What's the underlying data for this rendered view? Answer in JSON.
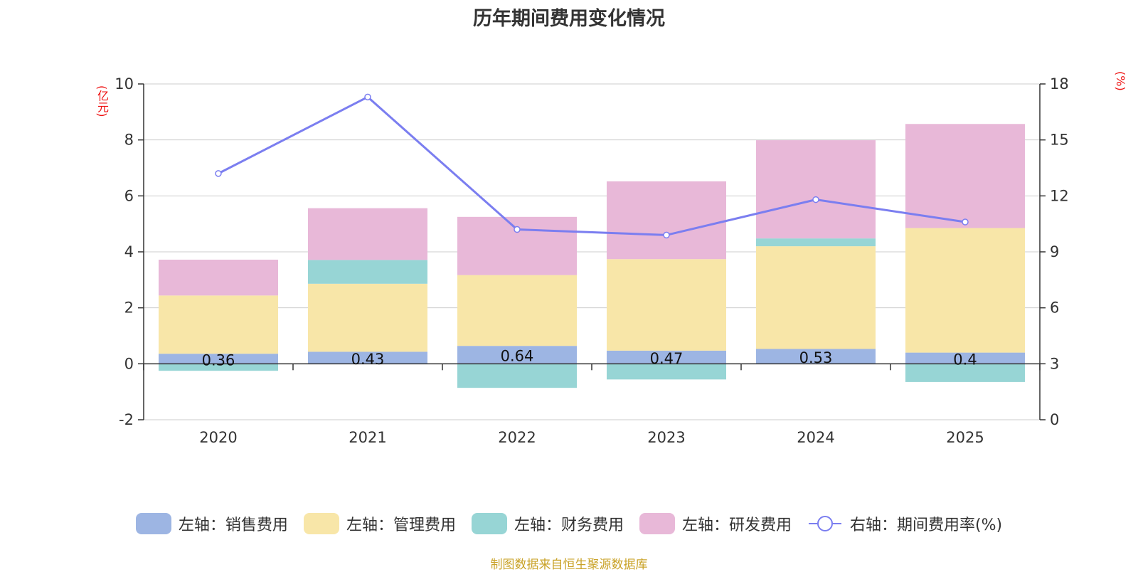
{
  "colors": {
    "sales": "#9db5e3",
    "admin": "#f8e6a8",
    "finance": "#97d5d5",
    "rd": "#e8b8d8",
    "rate_line": "#7b7ef0",
    "axis_unit": "#ee1111",
    "source": "#c9a227",
    "grid": "#cccccc",
    "axis": "#333333"
  },
  "chart_data": {
    "type": "bar",
    "stacked": true,
    "title": "历年期间费用变化情况",
    "categories": [
      "2020",
      "2021",
      "2022",
      "2023",
      "2024",
      "2025"
    ],
    "left_axis": {
      "unit_label": "(亿元)",
      "range": [
        -2,
        10
      ],
      "ticks": [
        "-2",
        "0",
        "2",
        "4",
        "6",
        "8",
        "10"
      ]
    },
    "right_axis": {
      "unit_label": "(%)",
      "range": [
        0,
        18
      ],
      "ticks": [
        "0",
        "3",
        "6",
        "9",
        "12",
        "15",
        "18"
      ]
    },
    "series": [
      {
        "name": "左轴：销售费用",
        "key": "sales",
        "axis": "left",
        "values": [
          0.36,
          0.43,
          0.64,
          0.47,
          0.53,
          0.4
        ],
        "data_labels": [
          "0.36",
          "0.43",
          "0.64",
          "0.47",
          "0.53",
          "0.4"
        ]
      },
      {
        "name": "左轴：管理费用",
        "key": "admin",
        "axis": "left",
        "values": [
          2.08,
          2.43,
          2.53,
          3.27,
          3.67,
          4.45
        ]
      },
      {
        "name": "左轴：财务费用",
        "key": "finance",
        "axis": "left",
        "values": [
          -0.25,
          0.85,
          -0.86,
          -0.56,
          0.28,
          -0.65
        ]
      },
      {
        "name": "左轴：研发费用",
        "key": "rd",
        "axis": "left",
        "values": [
          1.28,
          1.85,
          2.08,
          2.78,
          3.51,
          3.72
        ]
      },
      {
        "name": "右轴：期间费用率(%)",
        "key": "rate",
        "axis": "right",
        "type": "line",
        "values": [
          13.2,
          17.3,
          10.2,
          9.9,
          11.8,
          10.6
        ]
      }
    ],
    "legend_position": "bottom",
    "grid": true
  },
  "source_note": "制图数据来自恒生聚源数据库"
}
